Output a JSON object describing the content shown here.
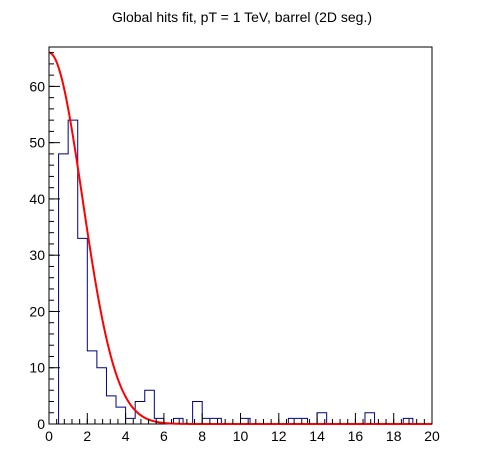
{
  "chart_data": {
    "type": "histogram",
    "title": "Global hits fit, pT = 1 TeV, barrel (2D seg.)",
    "xlabel": "",
    "ylabel": "",
    "xlim": [
      0,
      20
    ],
    "ylim": [
      0,
      67
    ],
    "bin_width": 0.5,
    "bin_edges_start": 0,
    "counts": [
      0,
      48,
      54,
      33,
      13,
      10,
      5,
      3,
      1,
      4,
      6,
      1,
      0,
      1,
      0,
      4,
      1,
      1,
      0,
      0,
      1,
      0,
      0,
      0,
      0,
      1,
      1,
      0,
      2,
      0,
      0,
      0,
      0,
      2,
      0,
      0,
      0,
      1,
      0,
      0
    ],
    "x_ticks": [
      "0",
      "2",
      "4",
      "6",
      "8",
      "10",
      "12",
      "14",
      "16",
      "18",
      "20"
    ],
    "x_tick_values": [
      0,
      2,
      4,
      6,
      8,
      10,
      12,
      14,
      16,
      18,
      20
    ],
    "y_ticks": [
      "0",
      "10",
      "20",
      "30",
      "40",
      "50",
      "60"
    ],
    "y_tick_values": [
      0,
      10,
      20,
      30,
      40,
      50,
      60
    ],
    "fit": {
      "function": "gaussian",
      "amplitude": 66,
      "mean": 0,
      "sigma": 1.75,
      "x_range": [
        0,
        20
      ]
    },
    "colors": {
      "histogram": "#000080",
      "fit": "#ff0000",
      "axis": "#000000"
    },
    "grid": false,
    "legend": "none"
  }
}
